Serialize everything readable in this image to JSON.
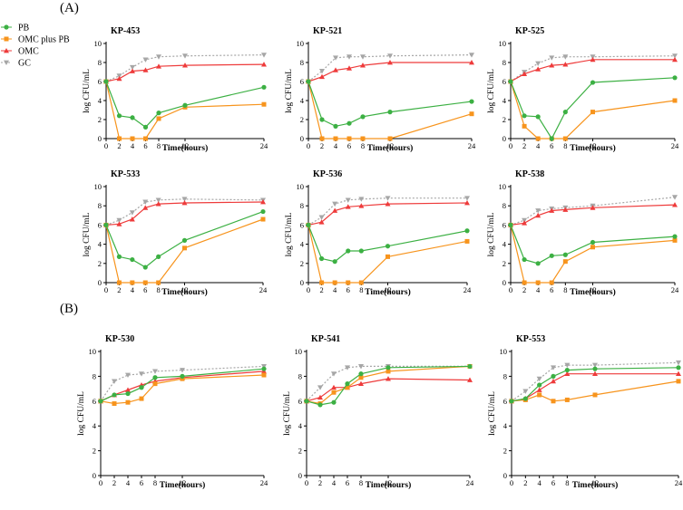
{
  "figure": {
    "panel_labels": [
      "(A)",
      "(B)"
    ]
  },
  "legend": {
    "items": [
      {
        "name": "PB",
        "color": "#3cb043",
        "marker": "circle",
        "dash": false
      },
      {
        "name": "OMC plus PB",
        "color": "#f7941d",
        "marker": "square",
        "dash": false
      },
      {
        "name": "OMC",
        "color": "#ee3b3b",
        "marker": "triangle-up",
        "dash": false
      },
      {
        "name": "GC",
        "color": "#a6a6a6",
        "marker": "triangle-down",
        "dash": true
      }
    ]
  },
  "chart_data": [
    {
      "type": "line",
      "title": "KP-453",
      "xlabel": "Time(hours)",
      "ylabel": "log CFU/mL",
      "x": [
        0,
        2,
        4,
        6,
        8,
        12,
        24
      ],
      "xticks": [
        0,
        2,
        4,
        6,
        8,
        12,
        24
      ],
      "ylim": [
        0,
        10
      ],
      "yticks": [
        0,
        2,
        4,
        6,
        8,
        10
      ],
      "series": [
        {
          "name": "PB",
          "values": [
            6.0,
            2.4,
            2.2,
            1.2,
            2.7,
            3.5,
            5.4
          ]
        },
        {
          "name": "OMC plus PB",
          "values": [
            6.0,
            0,
            0,
            0,
            2.1,
            3.3,
            3.6
          ]
        },
        {
          "name": "OMC",
          "values": [
            6.0,
            6.3,
            7.1,
            7.2,
            7.6,
            7.7,
            7.8
          ]
        },
        {
          "name": "GC",
          "values": [
            6.0,
            6.6,
            7.5,
            8.3,
            8.6,
            8.7,
            8.8
          ]
        }
      ]
    },
    {
      "type": "line",
      "title": "KP-521",
      "xlabel": "Time(hours)",
      "ylabel": "log CFU/mL",
      "x": [
        0,
        2,
        4,
        6,
        8,
        12,
        24
      ],
      "xticks": [
        0,
        2,
        4,
        6,
        8,
        12,
        24
      ],
      "ylim": [
        0,
        10
      ],
      "yticks": [
        0,
        2,
        4,
        6,
        8,
        10
      ],
      "series": [
        {
          "name": "PB",
          "values": [
            6.0,
            2.0,
            1.3,
            1.6,
            2.3,
            2.8,
            3.9
          ]
        },
        {
          "name": "OMC plus PB",
          "values": [
            6.0,
            0,
            0,
            0,
            0,
            0,
            2.6
          ]
        },
        {
          "name": "OMC",
          "values": [
            6.0,
            6.5,
            7.2,
            7.4,
            7.7,
            8.0,
            8.0
          ]
        },
        {
          "name": "GC",
          "values": [
            6.0,
            7.1,
            8.5,
            8.6,
            8.6,
            8.7,
            8.8
          ]
        }
      ]
    },
    {
      "type": "line",
      "title": "KP-525",
      "xlabel": "Time(hours)",
      "ylabel": "log CFU/mL",
      "x": [
        0,
        2,
        4,
        6,
        8,
        12,
        24
      ],
      "xticks": [
        0,
        2,
        4,
        6,
        8,
        12,
        24
      ],
      "ylim": [
        0,
        10
      ],
      "yticks": [
        0,
        2,
        4,
        6,
        8,
        10
      ],
      "series": [
        {
          "name": "PB",
          "values": [
            6.0,
            2.4,
            2.3,
            0,
            2.8,
            5.9,
            6.4
          ]
        },
        {
          "name": "OMC plus PB",
          "values": [
            6.0,
            1.3,
            0,
            0,
            0,
            2.8,
            4.0
          ]
        },
        {
          "name": "OMC",
          "values": [
            6.0,
            6.8,
            7.3,
            7.7,
            7.8,
            8.3,
            8.3
          ]
        },
        {
          "name": "GC",
          "values": [
            6.0,
            7.0,
            7.9,
            8.5,
            8.6,
            8.6,
            8.7
          ]
        }
      ]
    },
    {
      "type": "line",
      "title": "KP-533",
      "xlabel": "Time(hours)",
      "ylabel": "log CFU/mL",
      "x": [
        0,
        2,
        4,
        6,
        8,
        12,
        24
      ],
      "xticks": [
        0,
        2,
        4,
        6,
        8,
        12,
        24
      ],
      "ylim": [
        0,
        10
      ],
      "yticks": [
        0,
        2,
        4,
        6,
        8,
        10
      ],
      "series": [
        {
          "name": "PB",
          "values": [
            6.0,
            2.7,
            2.4,
            1.6,
            2.7,
            4.4,
            7.4
          ]
        },
        {
          "name": "OMC plus PB",
          "values": [
            6.0,
            0,
            0,
            0,
            0,
            3.6,
            6.6
          ]
        },
        {
          "name": "OMC",
          "values": [
            6.0,
            6.1,
            6.6,
            7.8,
            8.2,
            8.3,
            8.4
          ]
        },
        {
          "name": "GC",
          "values": [
            6.0,
            6.5,
            7.3,
            8.4,
            8.6,
            8.7,
            8.6
          ]
        }
      ]
    },
    {
      "type": "line",
      "title": "KP-536",
      "xlabel": "Time(hours)",
      "ylabel": "log CFU/mL",
      "x": [
        0,
        2,
        4,
        6,
        8,
        12,
        24
      ],
      "xticks": [
        0,
        2,
        4,
        6,
        8,
        12,
        24
      ],
      "ylim": [
        0,
        10
      ],
      "yticks": [
        0,
        2,
        4,
        6,
        8,
        10
      ],
      "series": [
        {
          "name": "PB",
          "values": [
            6.0,
            2.5,
            2.2,
            3.3,
            3.3,
            3.8,
            5.4
          ]
        },
        {
          "name": "OMC plus PB",
          "values": [
            6.0,
            0,
            0,
            0,
            0,
            2.7,
            4.3
          ]
        },
        {
          "name": "OMC",
          "values": [
            6.0,
            6.3,
            7.5,
            7.9,
            8.0,
            8.2,
            8.3
          ]
        },
        {
          "name": "GC",
          "values": [
            6.0,
            6.8,
            8.2,
            8.6,
            8.7,
            8.8,
            8.8
          ]
        }
      ]
    },
    {
      "type": "line",
      "title": "KP-538",
      "xlabel": "Time(hours)",
      "ylabel": "log CFU/mL",
      "x": [
        0,
        2,
        4,
        6,
        8,
        12,
        24
      ],
      "xticks": [
        0,
        2,
        4,
        6,
        8,
        12,
        24
      ],
      "ylim": [
        0,
        10
      ],
      "yticks": [
        0,
        2,
        4,
        6,
        8,
        10
      ],
      "series": [
        {
          "name": "PB",
          "values": [
            6.0,
            2.4,
            2.0,
            2.8,
            2.9,
            4.2,
            4.8
          ]
        },
        {
          "name": "OMC plus PB",
          "values": [
            6.0,
            0,
            0,
            0,
            2.2,
            3.7,
            4.4
          ]
        },
        {
          "name": "OMC",
          "values": [
            6.0,
            6.2,
            7.0,
            7.5,
            7.6,
            7.8,
            8.1
          ]
        },
        {
          "name": "GC",
          "values": [
            6.0,
            6.5,
            7.5,
            7.7,
            7.8,
            8.0,
            8.9
          ]
        }
      ]
    },
    {
      "type": "line",
      "title": "KP-530",
      "xlabel": "Time(hours)",
      "ylabel": "log CFU/mL",
      "x": [
        0,
        2,
        4,
        6,
        8,
        12,
        24
      ],
      "xticks": [
        0,
        2,
        4,
        6,
        8,
        12,
        24
      ],
      "ylim": [
        0,
        10
      ],
      "yticks": [
        0,
        2,
        4,
        6,
        8,
        10
      ],
      "series": [
        {
          "name": "PB",
          "values": [
            6.0,
            6.5,
            6.6,
            7.1,
            7.9,
            8.0,
            8.6
          ]
        },
        {
          "name": "OMC plus PB",
          "values": [
            6.0,
            5.8,
            5.9,
            6.2,
            7.4,
            7.8,
            8.1
          ]
        },
        {
          "name": "OMC",
          "values": [
            6.0,
            6.5,
            6.9,
            7.3,
            7.6,
            7.9,
            8.4
          ]
        },
        {
          "name": "GC",
          "values": [
            6.0,
            7.6,
            8.1,
            8.2,
            8.4,
            8.5,
            8.8
          ]
        }
      ]
    },
    {
      "type": "line",
      "title": "KP-541",
      "xlabel": "Time(hours)",
      "ylabel": "log CFU/mL",
      "x": [
        0,
        2,
        4,
        6,
        8,
        12,
        24
      ],
      "xticks": [
        0,
        2,
        4,
        6,
        8,
        12,
        24
      ],
      "ylim": [
        0,
        10
      ],
      "yticks": [
        0,
        2,
        4,
        6,
        8,
        10
      ],
      "series": [
        {
          "name": "PB",
          "values": [
            6.0,
            5.7,
            5.9,
            7.4,
            8.2,
            8.7,
            8.8
          ]
        },
        {
          "name": "OMC plus PB",
          "values": [
            6.0,
            5.8,
            6.7,
            7.1,
            7.9,
            8.4,
            8.8
          ]
        },
        {
          "name": "OMC",
          "values": [
            6.0,
            6.3,
            7.1,
            7.1,
            7.4,
            7.8,
            7.7
          ]
        },
        {
          "name": "GC",
          "values": [
            6.0,
            7.1,
            8.2,
            8.7,
            8.8,
            8.8,
            8.8
          ]
        }
      ]
    },
    {
      "type": "line",
      "title": "KP-553",
      "xlabel": "Time(hours)",
      "ylabel": "log CFU/mL",
      "x": [
        0,
        2,
        4,
        6,
        8,
        12,
        24
      ],
      "xticks": [
        0,
        2,
        4,
        6,
        8,
        12,
        24
      ],
      "ylim": [
        0,
        10
      ],
      "yticks": [
        0,
        2,
        4,
        6,
        8,
        10
      ],
      "series": [
        {
          "name": "PB",
          "values": [
            6.0,
            6.2,
            7.3,
            8.0,
            8.5,
            8.6,
            8.7
          ]
        },
        {
          "name": "OMC plus PB",
          "values": [
            6.0,
            6.1,
            6.5,
            6.0,
            6.1,
            6.5,
            7.6
          ]
        },
        {
          "name": "OMC",
          "values": [
            6.0,
            6.2,
            6.9,
            7.6,
            8.2,
            8.2,
            8.2
          ]
        },
        {
          "name": "GC",
          "values": [
            6.0,
            6.8,
            7.8,
            8.7,
            8.9,
            8.9,
            9.1
          ]
        }
      ]
    }
  ]
}
